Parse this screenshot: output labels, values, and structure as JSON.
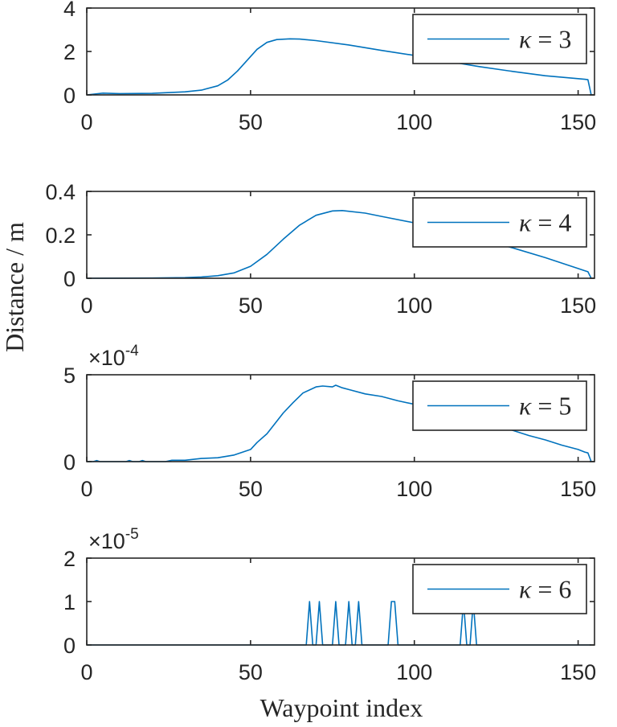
{
  "ylabel": "Distance / m",
  "xlabel": "Waypoint index",
  "chart_data": [
    {
      "type": "line",
      "legend": {
        "symbol": "κ",
        "relation": " = ",
        "value": "3",
        "placement": "top-right"
      },
      "xlim": [
        0,
        155
      ],
      "ylim": [
        0,
        4
      ],
      "xticks": [
        0,
        50,
        100,
        150
      ],
      "yticks": [
        0,
        2,
        4
      ],
      "multiplier": null,
      "grid": false,
      "x": [
        0,
        5,
        10,
        20,
        30,
        35,
        40,
        43,
        46,
        49,
        52,
        55,
        58,
        62,
        65,
        70,
        80,
        90,
        100,
        110,
        120,
        130,
        140,
        150,
        152,
        153,
        154
      ],
      "y": [
        0.0,
        0.08,
        0.06,
        0.07,
        0.14,
        0.22,
        0.42,
        0.68,
        1.1,
        1.6,
        2.1,
        2.42,
        2.55,
        2.58,
        2.57,
        2.5,
        2.3,
        2.05,
        1.82,
        1.55,
        1.3,
        1.08,
        0.88,
        0.75,
        0.72,
        0.7,
        0.0
      ]
    },
    {
      "type": "line",
      "legend": {
        "symbol": "κ",
        "relation": " = ",
        "value": "4",
        "placement": "top-right"
      },
      "xlim": [
        0,
        155
      ],
      "ylim": [
        0,
        0.4
      ],
      "xticks": [
        0,
        50,
        100,
        150
      ],
      "yticks": [
        0,
        0.2,
        0.4
      ],
      "ytick_labels": [
        "0",
        "0.2",
        "0.4"
      ],
      "multiplier": null,
      "grid": false,
      "x": [
        0,
        20,
        30,
        35,
        40,
        45,
        50,
        55,
        60,
        65,
        70,
        75,
        78,
        85,
        90,
        100,
        110,
        120,
        130,
        140,
        150,
        152,
        153,
        154
      ],
      "y": [
        0.0,
        0.001,
        0.003,
        0.006,
        0.012,
        0.025,
        0.055,
        0.11,
        0.18,
        0.245,
        0.29,
        0.31,
        0.312,
        0.3,
        0.285,
        0.255,
        0.22,
        0.18,
        0.14,
        0.095,
        0.045,
        0.035,
        0.03,
        0.0
      ]
    },
    {
      "type": "line",
      "legend": {
        "symbol": "κ",
        "relation": " = ",
        "value": "5",
        "placement": "top-right"
      },
      "xlim": [
        0,
        155
      ],
      "ylim": [
        0,
        5
      ],
      "xticks": [
        0,
        50,
        100,
        150
      ],
      "yticks": [
        0,
        5
      ],
      "multiplier": {
        "base": "×10",
        "exponent": "-4"
      },
      "grid": false,
      "x": [
        0,
        2,
        3,
        4,
        10,
        12,
        13,
        14,
        16,
        17,
        18,
        24,
        26,
        30,
        35,
        40,
        45,
        50,
        52,
        55,
        60,
        63,
        66,
        70,
        72,
        75,
        76,
        78,
        80,
        85,
        90,
        95,
        100,
        105,
        110,
        115,
        120,
        125,
        130,
        135,
        140,
        145,
        150,
        152,
        153,
        154
      ],
      "y": [
        0.0,
        0.0,
        0.06,
        0.0,
        0.0,
        0.0,
        0.06,
        0.0,
        0.0,
        0.06,
        0.0,
        0.0,
        0.08,
        0.08,
        0.18,
        0.22,
        0.38,
        0.7,
        1.1,
        1.6,
        2.8,
        3.4,
        3.95,
        4.3,
        4.35,
        4.3,
        4.4,
        4.25,
        4.15,
        3.9,
        3.75,
        3.5,
        3.3,
        3.1,
        3.05,
        2.8,
        2.4,
        2.05,
        1.8,
        1.5,
        1.25,
        0.95,
        0.7,
        0.55,
        0.5,
        0.0
      ]
    },
    {
      "type": "line",
      "legend": {
        "symbol": "κ",
        "relation": " = ",
        "value": "6",
        "placement": "top-right"
      },
      "xlim": [
        0,
        155
      ],
      "ylim": [
        0,
        2
      ],
      "xticks": [
        0,
        50,
        100,
        150
      ],
      "yticks": [
        0,
        1,
        2
      ],
      "multiplier": {
        "base": "×10",
        "exponent": "-5"
      },
      "grid": false,
      "x": [
        0,
        67,
        68,
        69,
        70,
        71,
        72,
        75,
        76,
        77,
        79,
        80,
        81,
        82,
        83,
        84,
        92,
        93,
        94,
        95,
        114,
        115,
        116,
        117,
        118,
        119,
        154
      ],
      "y": [
        0,
        0,
        1,
        0,
        0,
        1,
        0,
        0,
        1,
        0,
        0,
        1,
        0,
        0,
        1,
        0,
        0,
        1,
        1,
        0,
        0,
        1,
        0,
        0,
        1,
        0,
        0
      ]
    }
  ]
}
